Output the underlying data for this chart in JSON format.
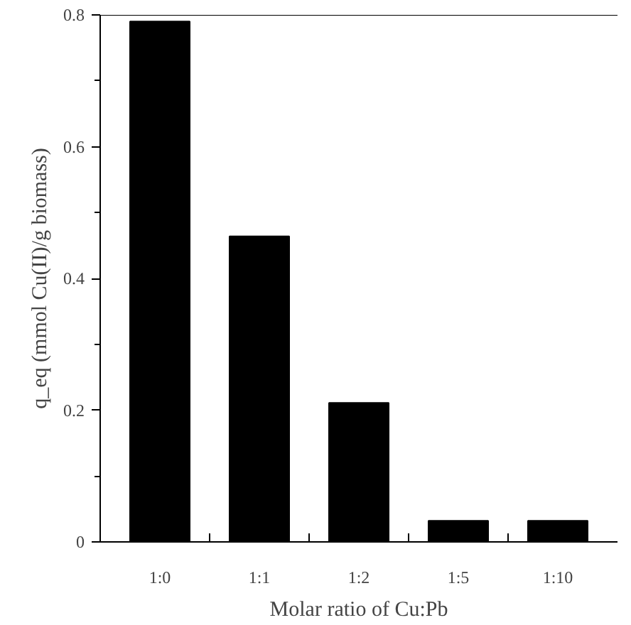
{
  "chart_data": {
    "type": "bar",
    "xlabel": "Molar ratio of Cu:Pb",
    "ylabel": "q_eq (mmol Cu(II)/g biomass)",
    "categories": [
      "1:0",
      "1:1",
      "1:2",
      "1:5",
      "1:10"
    ],
    "values": [
      0.79,
      0.464,
      0.211,
      0.032,
      0.032
    ],
    "color": "#000000",
    "ylim": [
      0,
      0.8
    ],
    "yticks": [
      0,
      0.2,
      0.4,
      0.6,
      0.8
    ],
    "grid": false
  }
}
